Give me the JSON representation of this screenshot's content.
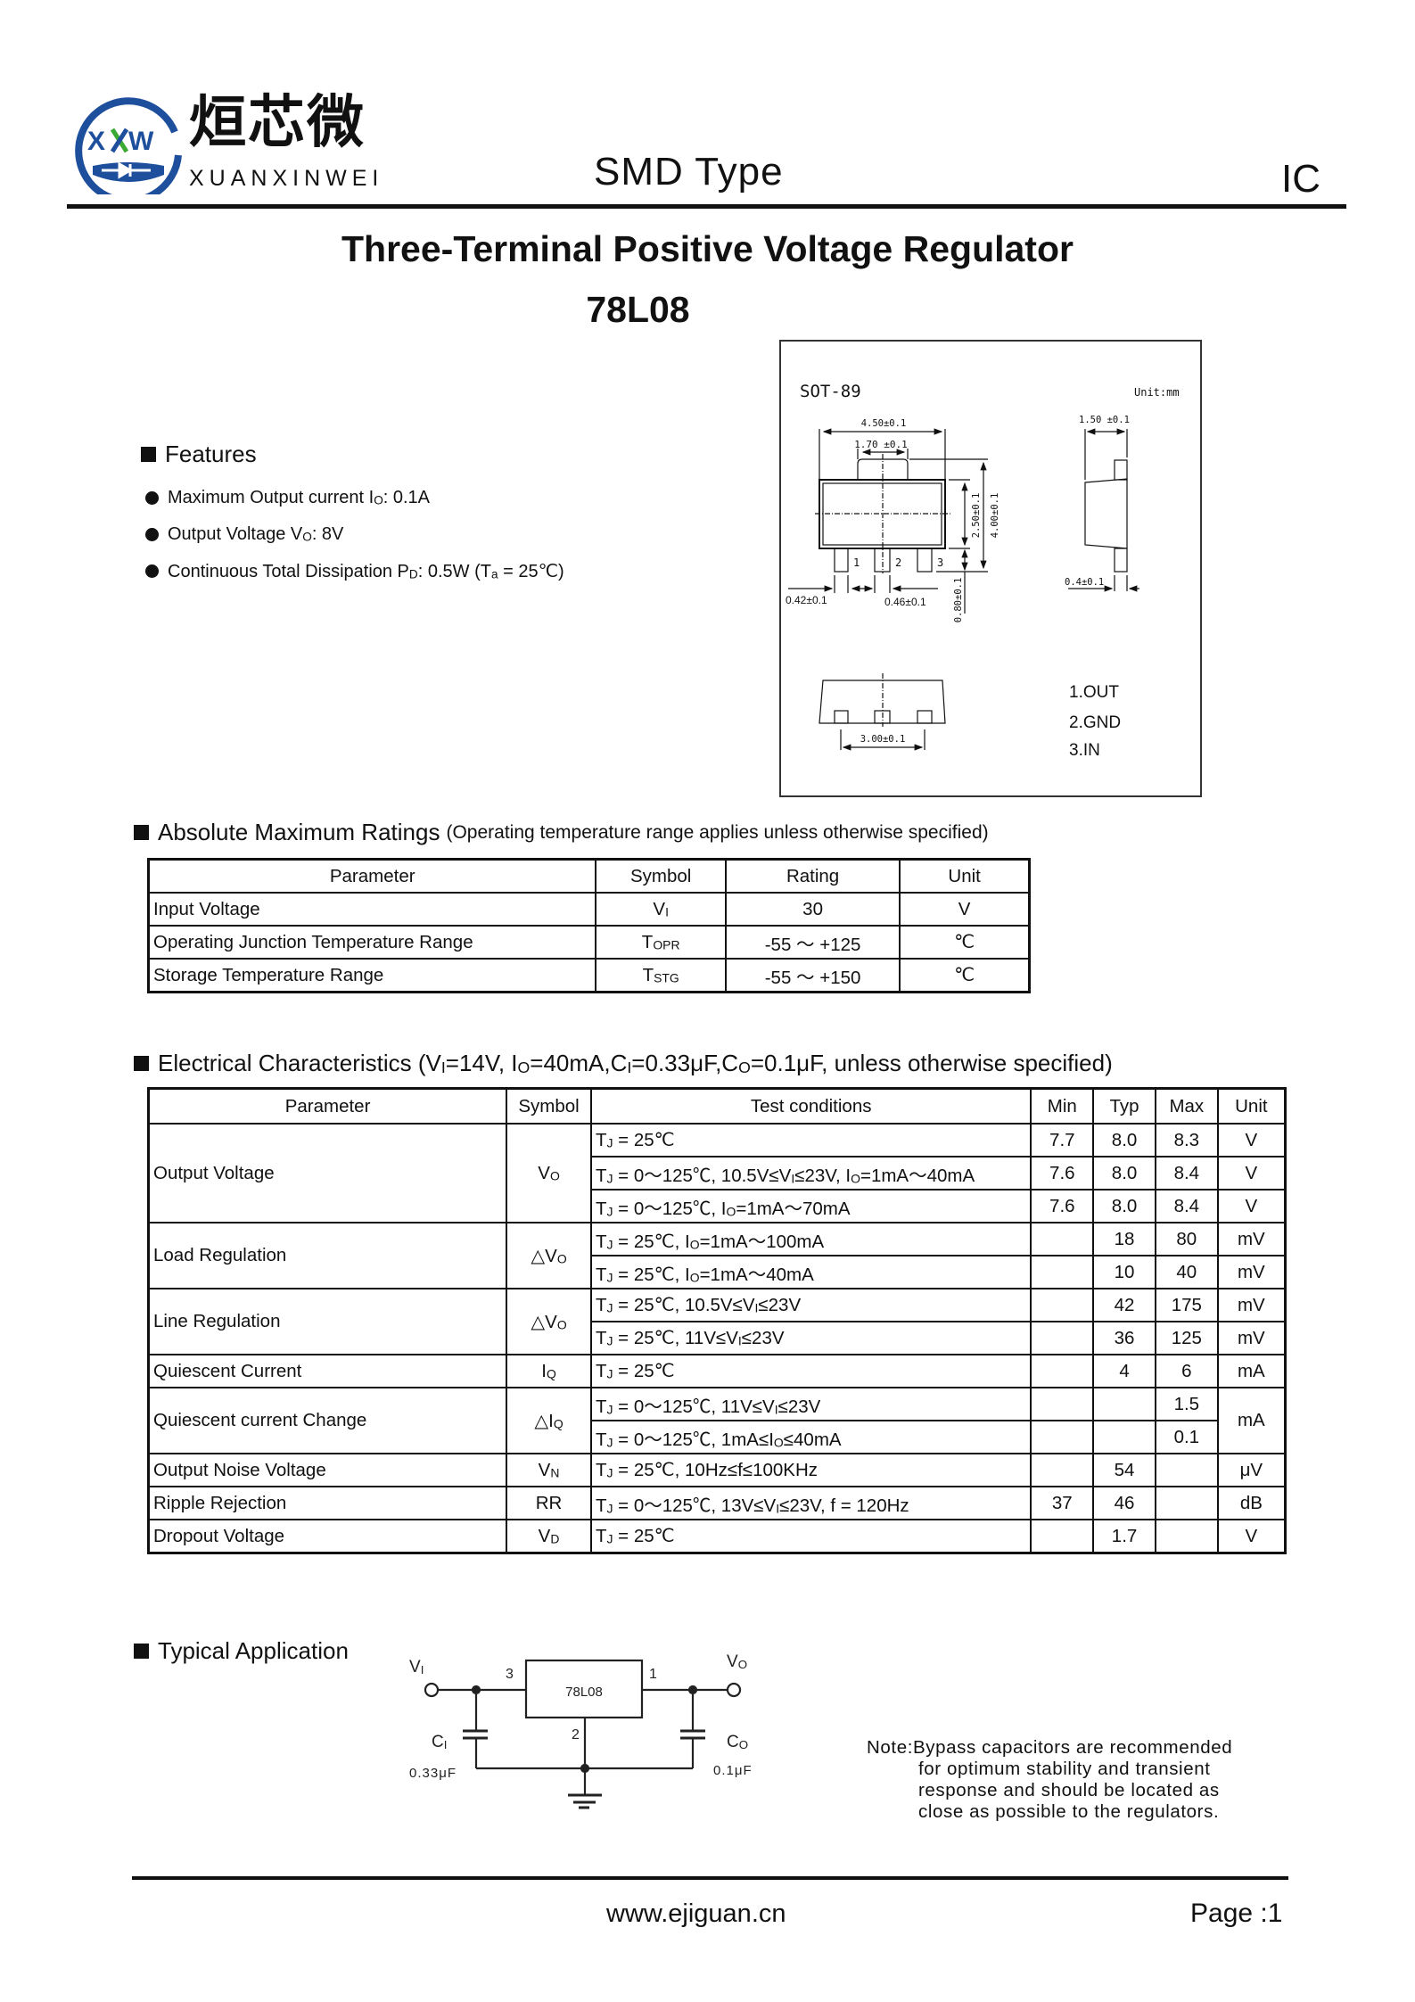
{
  "header": {
    "logo": {
      "chinese": "烜芯微",
      "english": "XUANXINWEI",
      "mark": "XXW",
      "colors": {
        "blue": "#1e4f9c",
        "green": "#3aaa35"
      }
    },
    "type": "SMD Type",
    "category": "IC"
  },
  "title": "Three-Terminal Positive Voltage Regulator",
  "part": "78L08",
  "package": {
    "name": "SOT-89",
    "unit": "Unit:mm",
    "dims": {
      "w450": "4.50±0.1",
      "w170": "1.70 ±0.1",
      "h250": "2.50±0.1",
      "h400": "4.00±0.1",
      "h080": "0.80±0.1",
      "w042": "0.42±0.1",
      "w046": "0.46±0.1",
      "w150": "1.50 ±0.1",
      "w04": "0.4±0.1",
      "w300": "3.00±0.1"
    },
    "lead_numbers": [
      "1",
      "2",
      "3"
    ],
    "pins": [
      "1.OUT",
      "2.GND",
      "3.IN"
    ]
  },
  "features": {
    "heading": "Features",
    "items": [
      [
        "Maximum Output current I",
        "O",
        ": 0.1A"
      ],
      [
        "Output Voltage V",
        "O",
        ": 8V"
      ],
      [
        "Continuous Total Dissipation P",
        "D",
        ": 0.5W (T",
        "a",
        " = 25℃)"
      ]
    ]
  },
  "abs_max": {
    "heading": "Absolute Maximum Ratings",
    "note": "(Operating temperature range applies unless otherwise specified)",
    "columns": [
      "Parameter",
      "Symbol",
      "Rating",
      "Unit"
    ],
    "rows": [
      {
        "param": "Input Voltage",
        "symbol": [
          "V",
          "I"
        ],
        "rating": "30",
        "unit": "V"
      },
      {
        "param": "Operating Junction Temperature Range",
        "symbol": [
          "T",
          "OPR"
        ],
        "rating": "-55 ～ +125",
        "unit": "℃"
      },
      {
        "param": "Storage Temperature Range",
        "symbol": [
          "T",
          "STG"
        ],
        "rating": "-55 ～ +150",
        "unit": "℃"
      }
    ]
  },
  "electrical": {
    "heading": [
      "Electrical Characteristics (V",
      "I",
      "=14V, I",
      "O",
      "=40mA,C",
      "I",
      "=0.33μF,C",
      "O",
      "=0.1μF, unless otherwise specified)"
    ],
    "columns": [
      "Parameter",
      "Symbol",
      "Test conditions",
      "Min",
      "Typ",
      "Max",
      "Unit"
    ],
    "groups": [
      {
        "param": "Output Voltage",
        "symbol": [
          "V",
          "O"
        ],
        "rows": [
          {
            "cond": [
              "T",
              "J",
              " = 25℃"
            ],
            "min": "7.7",
            "typ": "8.0",
            "max": "8.3",
            "unit": "V"
          },
          {
            "cond": [
              "T",
              "J",
              " = 0～125℃, 10.5V≤V",
              "I",
              "≤23V, I",
              "O",
              "=1mA～40mA"
            ],
            "min": "7.6",
            "typ": "8.0",
            "max": "8.4",
            "unit": "V"
          },
          {
            "cond": [
              "T",
              "J",
              " = 0～125℃, I",
              "O",
              "=1mA～70mA"
            ],
            "min": "7.6",
            "typ": "8.0",
            "max": "8.4",
            "unit": "V"
          }
        ]
      },
      {
        "param": "Load Regulation",
        "symbol": [
          "△V",
          "O"
        ],
        "rows": [
          {
            "cond": [
              "T",
              "J",
              " = 25℃, I",
              "O",
              "=1mA～100mA"
            ],
            "min": "",
            "typ": "18",
            "max": "80",
            "unit": "mV"
          },
          {
            "cond": [
              "T",
              "J",
              " = 25℃, I",
              "O",
              "=1mA～40mA"
            ],
            "min": "",
            "typ": "10",
            "max": "40",
            "unit": "mV"
          }
        ]
      },
      {
        "param": "Line Regulation",
        "symbol": [
          "△V",
          "O"
        ],
        "rows": [
          {
            "cond": [
              "T",
              "J",
              " = 25℃, 10.5V≤V",
              "I",
              "≤23V"
            ],
            "min": "",
            "typ": "42",
            "max": "175",
            "unit": "mV"
          },
          {
            "cond": [
              "T",
              "J",
              " = 25℃, 11V≤V",
              "I",
              "≤23V"
            ],
            "min": "",
            "typ": "36",
            "max": "125",
            "unit": "mV"
          }
        ]
      },
      {
        "param": "Quiescent Current",
        "symbol": [
          "I",
          "Q"
        ],
        "rows": [
          {
            "cond": [
              "T",
              "J",
              " = 25℃"
            ],
            "min": "",
            "typ": "4",
            "max": "6",
            "unit": "mA"
          }
        ]
      },
      {
        "param": "Quiescent current Change",
        "symbol": [
          "△I",
          "Q"
        ],
        "merged_unit": "mA",
        "rows": [
          {
            "cond": [
              "T",
              "J",
              " = 0～125℃, 11V≤V",
              "I",
              "≤23V"
            ],
            "min": "",
            "typ": "",
            "max": "1.5"
          },
          {
            "cond": [
              "T",
              "J",
              " = 0～125℃, 1mA≤I",
              "O",
              "≤40mA"
            ],
            "min": "",
            "typ": "",
            "max": "0.1"
          }
        ]
      },
      {
        "param": "Output Noise Voltage",
        "symbol": [
          "V",
          "N"
        ],
        "rows": [
          {
            "cond": [
              "T",
              "J",
              " = 25℃, 10Hz≤f≤100KHz"
            ],
            "min": "",
            "typ": "54",
            "max": "",
            "unit": "μV"
          }
        ]
      },
      {
        "param": "Ripple Rejection",
        "symbol": [
          "RR"
        ],
        "rows": [
          {
            "cond": [
              "T",
              "J",
              " = 0～125℃, 13V≤V",
              "I",
              "≤23V, f = 120Hz"
            ],
            "min": "37",
            "typ": "46",
            "max": "",
            "unit": "dB"
          }
        ]
      },
      {
        "param": "Dropout Voltage",
        "symbol": [
          "V",
          "D"
        ],
        "rows": [
          {
            "cond": [
              "T",
              "J",
              " = 25℃"
            ],
            "min": "",
            "typ": "1.7",
            "max": "",
            "unit": "V"
          }
        ]
      }
    ]
  },
  "application": {
    "heading": "Typical Application",
    "vi": [
      "V",
      "I"
    ],
    "vo": [
      "V",
      "O"
    ],
    "ci": [
      "C",
      "I"
    ],
    "co": [
      "C",
      "O"
    ],
    "ci_value": "0.33μF",
    "co_value": "0.1μF",
    "chip": "78L08",
    "pin_in": "3",
    "pin_out": "1",
    "pin_gnd": "2",
    "note": [
      "Note:Bypass capacitors are recommended",
      "for optimum stability and transient",
      "response and should be located as",
      "close as possible to the regulators."
    ]
  },
  "footer": {
    "url": "www.ejiguan.cn",
    "page": "Page :1"
  }
}
